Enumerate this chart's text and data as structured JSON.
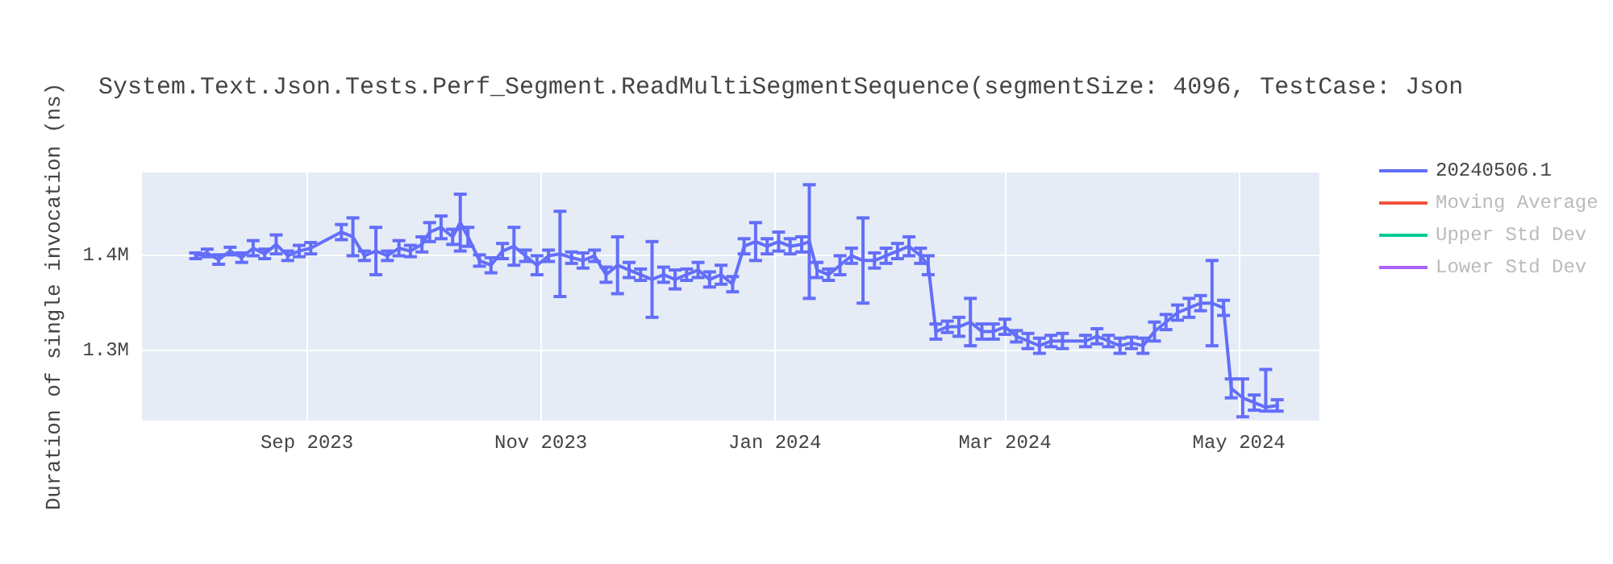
{
  "chart_data": {
    "type": "line",
    "title": "System.Text.Json.Tests.Perf_Segment.ReadMultiSegmentSequence(segmentSize: 4096, TestCase: Json",
    "ylabel": "Duration of single invocation (ns)",
    "x": [
      "2023-08-03",
      "2023-08-06",
      "2023-08-09",
      "2023-08-12",
      "2023-08-15",
      "2023-08-18",
      "2023-08-21",
      "2023-08-24",
      "2023-08-27",
      "2023-08-30",
      "2023-09-02",
      "2023-09-10",
      "2023-09-13",
      "2023-09-16",
      "2023-09-19",
      "2023-09-22",
      "2023-09-25",
      "2023-09-28",
      "2023-10-01",
      "2023-10-03",
      "2023-10-06",
      "2023-10-09",
      "2023-10-11",
      "2023-10-13",
      "2023-10-16",
      "2023-10-19",
      "2023-10-22",
      "2023-10-25",
      "2023-10-28",
      "2023-10-31",
      "2023-11-03",
      "2023-11-06",
      "2023-11-09",
      "2023-11-12",
      "2023-11-15",
      "2023-11-18",
      "2023-11-21",
      "2023-11-24",
      "2023-11-27",
      "2023-11-30",
      "2023-12-03",
      "2023-12-06",
      "2023-12-09",
      "2023-12-12",
      "2023-12-15",
      "2023-12-18",
      "2023-12-21",
      "2023-12-24",
      "2023-12-27",
      "2023-12-30",
      "2024-01-02",
      "2024-01-05",
      "2024-01-08",
      "2024-01-10",
      "2024-01-12",
      "2024-01-15",
      "2024-01-18",
      "2024-01-21",
      "2024-01-24",
      "2024-01-27",
      "2024-01-30",
      "2024-02-02",
      "2024-02-05",
      "2024-02-08",
      "2024-02-10",
      "2024-02-12",
      "2024-02-15",
      "2024-02-18",
      "2024-02-21",
      "2024-02-24",
      "2024-02-27",
      "2024-03-01",
      "2024-03-04",
      "2024-03-07",
      "2024-03-10",
      "2024-03-13",
      "2024-03-16",
      "2024-03-22",
      "2024-03-25",
      "2024-03-28",
      "2024-03-31",
      "2024-04-03",
      "2024-04-06",
      "2024-04-09",
      "2024-04-12",
      "2024-04-15",
      "2024-04-18",
      "2024-04-21",
      "2024-04-24",
      "2024-04-27",
      "2024-04-29",
      "2024-05-02",
      "2024-05-05",
      "2024-05-08",
      "2024-05-11"
    ],
    "series": [
      {
        "name": "20240506.1",
        "color": "#636efa",
        "values": [
          1400000,
          1403000,
          1396000,
          1405000,
          1398000,
          1408000,
          1402000,
          1412000,
          1400000,
          1405000,
          1408000,
          1425000,
          1420000,
          1400000,
          1405000,
          1400000,
          1408000,
          1405000,
          1412000,
          1425000,
          1430000,
          1420000,
          1435000,
          1420000,
          1395000,
          1390000,
          1405000,
          1410000,
          1400000,
          1390000,
          1400000,
          1402000,
          1398000,
          1395000,
          1400000,
          1380000,
          1390000,
          1385000,
          1380000,
          1375000,
          1380000,
          1375000,
          1380000,
          1385000,
          1375000,
          1380000,
          1370000,
          1410000,
          1415000,
          1410000,
          1415000,
          1410000,
          1412000,
          1415000,
          1385000,
          1380000,
          1390000,
          1400000,
          1395000,
          1395000,
          1400000,
          1405000,
          1410000,
          1400000,
          1390000,
          1320000,
          1325000,
          1325000,
          1330000,
          1320000,
          1320000,
          1325000,
          1315000,
          1310000,
          1305000,
          1310000,
          1310000,
          1310000,
          1315000,
          1310000,
          1305000,
          1308000,
          1305000,
          1320000,
          1330000,
          1340000,
          1345000,
          1350000,
          1350000,
          1345000,
          1260000,
          1250000,
          1245000,
          1240000,
          1242000
        ],
        "errors": [
          3000,
          4000,
          5000,
          4000,
          5000,
          8000,
          5000,
          10000,
          5000,
          6000,
          6000,
          8000,
          20000,
          5000,
          25000,
          5000,
          8000,
          6000,
          8000,
          10000,
          12000,
          8000,
          30000,
          10000,
          6000,
          8000,
          8000,
          20000,
          6000,
          10000,
          6000,
          45000,
          6000,
          8000,
          6000,
          8000,
          30000,
          8000,
          6000,
          40000,
          8000,
          10000,
          6000,
          8000,
          8000,
          10000,
          8000,
          8000,
          20000,
          8000,
          10000,
          8000,
          8000,
          60000,
          8000,
          6000,
          10000,
          8000,
          45000,
          8000,
          8000,
          8000,
          10000,
          8000,
          10000,
          8000,
          6000,
          10000,
          25000,
          8000,
          8000,
          8000,
          6000,
          8000,
          8000,
          6000,
          8000,
          6000,
          8000,
          6000,
          8000,
          6000,
          8000,
          10000,
          8000,
          8000,
          10000,
          8000,
          45000,
          8000,
          10000,
          20000,
          8000,
          [
            1236000,
            1280000
          ],
          6000
        ]
      },
      {
        "name": "Moving Average",
        "color": "#ef553b",
        "values": [
          null,
          null,
          null,
          null,
          null,
          null,
          null,
          null,
          null,
          null,
          null,
          null,
          null,
          null,
          null,
          null,
          null,
          null,
          null,
          null,
          null,
          null,
          null,
          null,
          null,
          null,
          null,
          null,
          null,
          null,
          null,
          null,
          null,
          null,
          null,
          null,
          null,
          null,
          null,
          null,
          null,
          null,
          null,
          null,
          null,
          null,
          null,
          null,
          null,
          null,
          null,
          null,
          null,
          null,
          null,
          null,
          null,
          null,
          null,
          null,
          null,
          null,
          null,
          null,
          null,
          null,
          null,
          null,
          null,
          null,
          null,
          null,
          null,
          null,
          null,
          null,
          null,
          null,
          null,
          null,
          null,
          null,
          null,
          null,
          null,
          null,
          null,
          null,
          null,
          null,
          null,
          null,
          null,
          null,
          null
        ]
      },
      {
        "name": "Upper Std Dev",
        "color": "#00cc96",
        "values": [
          null,
          null,
          null,
          null,
          null,
          null,
          null,
          null,
          null,
          null,
          null,
          null,
          null,
          null,
          null,
          null,
          null,
          null,
          null,
          null,
          null,
          null,
          null,
          null,
          null,
          null,
          null,
          null,
          null,
          null,
          null,
          null,
          null,
          null,
          null,
          null,
          null,
          null,
          null,
          null,
          null,
          null,
          null,
          null,
          null,
          null,
          null,
          null,
          null,
          null,
          null,
          null,
          null,
          null,
          null,
          null,
          null,
          null,
          null,
          null,
          null,
          null,
          null,
          null,
          null,
          null,
          null,
          null,
          null,
          null,
          null,
          null,
          null,
          null,
          null,
          null,
          null,
          null,
          null,
          null,
          null,
          null,
          null,
          null,
          null,
          null,
          null,
          null,
          null,
          null,
          null,
          null,
          null,
          null,
          null
        ]
      },
      {
        "name": "Lower Std Dev",
        "color": "#ab63fa",
        "values": [
          null,
          null,
          null,
          null,
          null,
          null,
          null,
          null,
          null,
          null,
          null,
          null,
          null,
          null,
          null,
          null,
          null,
          null,
          null,
          null,
          null,
          null,
          null,
          null,
          null,
          null,
          null,
          null,
          null,
          null,
          null,
          null,
          null,
          null,
          null,
          null,
          null,
          null,
          null,
          null,
          null,
          null,
          null,
          null,
          null,
          null,
          null,
          null,
          null,
          null,
          null,
          null,
          null,
          null,
          null,
          null,
          null,
          null,
          null,
          null,
          null,
          null,
          null,
          null,
          null,
          null,
          null,
          null,
          null,
          null,
          null,
          null,
          null,
          null,
          null,
          null,
          null,
          null,
          null,
          null,
          null,
          null,
          null,
          null,
          null,
          null,
          null,
          null,
          null,
          null,
          null,
          null,
          null,
          null,
          null
        ]
      }
    ],
    "xlim": [
      "2023-07-20",
      "2024-05-22"
    ],
    "xticks": [
      {
        "value": "2023-09-01",
        "label": "Sep 2023"
      },
      {
        "value": "2023-11-01",
        "label": "Nov 2023"
      },
      {
        "value": "2024-01-01",
        "label": "Jan 2024"
      },
      {
        "value": "2024-03-01",
        "label": "Mar 2024"
      },
      {
        "value": "2024-05-01",
        "label": "May 2024"
      }
    ],
    "ylim": [
      1226000,
      1488000
    ],
    "yticks": [
      {
        "value": 1300000,
        "label": "1.3M"
      },
      {
        "value": 1400000,
        "label": "1.4M"
      }
    ],
    "grid": true,
    "legend": "right",
    "marker": "none",
    "line_style": "solid"
  }
}
